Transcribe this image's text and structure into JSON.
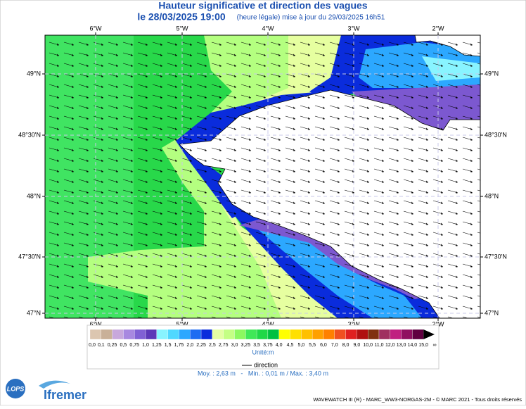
{
  "map": {
    "title": "Hauteur significative et direction des vagues",
    "date": "le 28/03/2025 19:00",
    "update": "(heure légale) mise à jour du 29/03/2025 16h51",
    "longitudes": [
      "6°W",
      "5°W",
      "4°W",
      "3°W",
      "2°W"
    ],
    "latitudes": [
      "49°N",
      "48°30'N",
      "48°N",
      "47°30'N",
      "47°N"
    ],
    "legend": {
      "labels": [
        "0,0",
        "0,1",
        "0,25",
        "0,5",
        "0,75",
        "1,0",
        "1,25",
        "1,5",
        "1,75",
        "2,0",
        "2,25",
        "2,5",
        "2,75",
        "3,0",
        "3,25",
        "3,5",
        "3,75",
        "4,0",
        "4,5",
        "5,0",
        "5,5",
        "6,0",
        "7,0",
        "8,0",
        "9,0",
        "10,0",
        "11,0",
        "12,0",
        "13,0",
        "14,0",
        "15,0",
        "∞"
      ],
      "colors": [
        "#dcc6b0",
        "#c9b098",
        "#c8a8dc",
        "#a888e0",
        "#8060d4",
        "#5c38b8",
        "#88f4ff",
        "#50d8ff",
        "#2ca8ff",
        "#1e6cf2",
        "#0a2cdc",
        "#e4ffa4",
        "#c4ff84",
        "#8cf860",
        "#40e858",
        "#20d848",
        "#00c040",
        "#ffff00",
        "#ffe000",
        "#ffc000",
        "#ffa000",
        "#ff8000",
        "#f05020",
        "#e02020",
        "#b01010",
        "#803010",
        "#a03060",
        "#c02080",
        "#901060",
        "#600040",
        "#000000"
      ],
      "unit": "Unité:m",
      "direction": "direction"
    },
    "stats": "Moy. : 2,63 m   -   Min. : 0,01 m / Max. : 3,40 m",
    "logos": {
      "lops": "LOPS",
      "ifremer": "Ifremer"
    },
    "footer": "WAVEWATCH III (R) - MARC_WW3-NORGAS-2M - © MARC 2021 - Tous droits réservés"
  }
}
